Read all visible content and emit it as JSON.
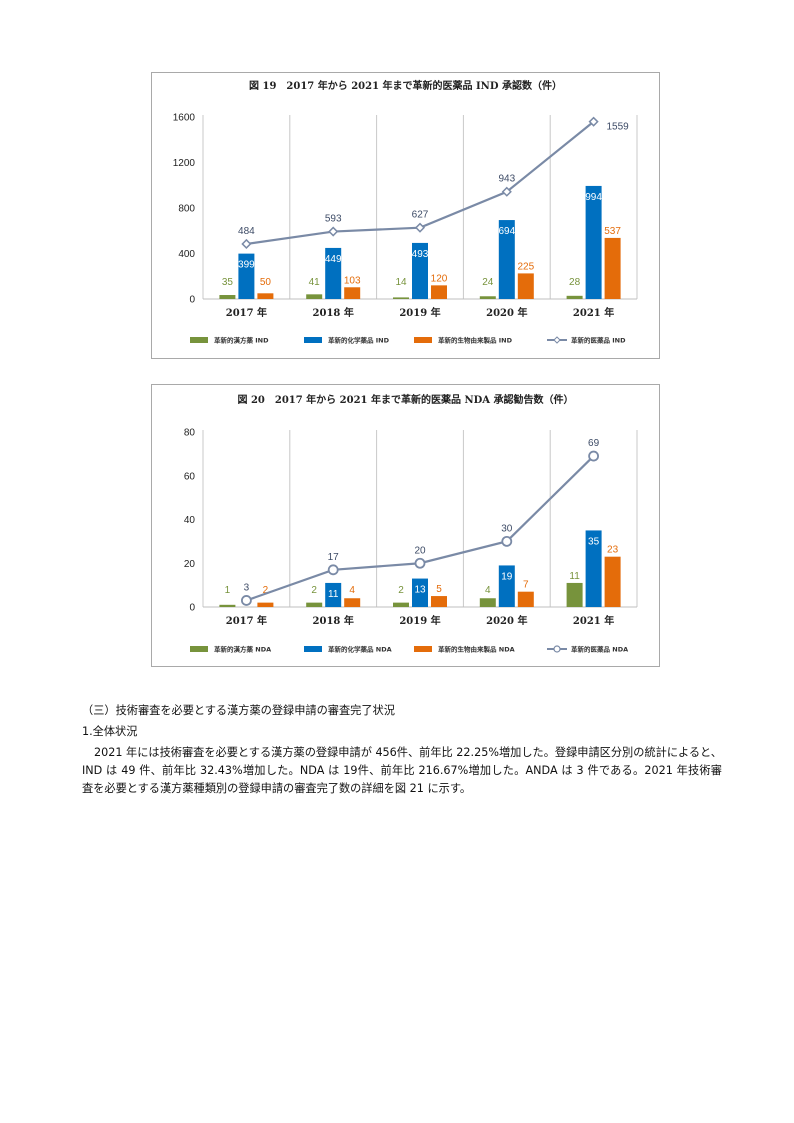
{
  "charts": [
    {
      "id": "chart1",
      "title": "図 19　2017 年から 2021 年まで革新的医薬品 IND 承認数（件）",
      "chart_data": {
        "type": "bar",
        "categories": [
          "2017 年",
          "2018 年",
          "2019 年",
          "2020 年",
          "2021 年"
        ],
        "series": [
          {
            "name": "革新的漢方薬 IND",
            "kind": "bar",
            "color": "#77933c",
            "values": [
              35,
              41,
              14,
              24,
              28
            ]
          },
          {
            "name": "革新的化学薬品 IND",
            "kind": "bar",
            "color": "#0070c0",
            "values": [
              399,
              449,
              493,
              694,
              994
            ]
          },
          {
            "name": "革新的生物由来製品 IND",
            "kind": "bar",
            "color": "#e46c0a",
            "values": [
              50,
              103,
              120,
              225,
              537
            ]
          },
          {
            "name": "革新的医薬品 IND",
            "kind": "line",
            "color": "#7a8aa6",
            "values": [
              484,
              593,
              627,
              943,
              1559
            ]
          }
        ],
        "yticks": [
          0,
          400,
          800,
          1200,
          1600
        ],
        "ylim": [
          0,
          1600
        ],
        "legend": "bottom",
        "marker": "diamond"
      }
    },
    {
      "id": "chart2",
      "title": "図 20　2017 年から 2021 年まで革新的医薬品 NDA 承認勧告数（件）",
      "chart_data": {
        "type": "bar",
        "categories": [
          "2017 年",
          "2018 年",
          "2019 年",
          "2020 年",
          "2021 年"
        ],
        "series": [
          {
            "name": "革新的漢方薬 NDA",
            "kind": "bar",
            "color": "#77933c",
            "values": [
              1,
              2,
              2,
              4,
              11
            ]
          },
          {
            "name": "革新的化学薬品 NDA",
            "kind": "bar",
            "color": "#0070c0",
            "values": [
              0,
              11,
              13,
              19,
              35
            ]
          },
          {
            "name": "革新的生物由来製品 NDA",
            "kind": "bar",
            "color": "#e46c0a",
            "values": [
              2,
              4,
              5,
              7,
              23
            ]
          },
          {
            "name": "革新的医薬品 NDA",
            "kind": "line",
            "color": "#7a8aa6",
            "values": [
              3,
              17,
              20,
              30,
              69
            ]
          }
        ],
        "yticks": [
          0,
          20,
          40,
          60,
          80
        ],
        "ylim": [
          0,
          80
        ],
        "legend": "bottom",
        "marker": "circle"
      }
    }
  ],
  "text": {
    "section_heading": "（三）技術審査を必要とする漢方薬の登録申請の審査完了状況",
    "sub_heading": "1.全体状況",
    "paragraph": "2021 年には技術審査を必要とする漢方薬の登録申請が 456件、前年比 22.25%増加した。登録申請区分別の統計によると、IND は 49 件、前年比 32.43%増加した。NDA は 19件、前年比 216.67%増加した。ANDA は 3 件である。2021 年技術審査を必要とする漢方薬種類別の登録申請の審査完了数の詳細を図 21 に示す。"
  }
}
